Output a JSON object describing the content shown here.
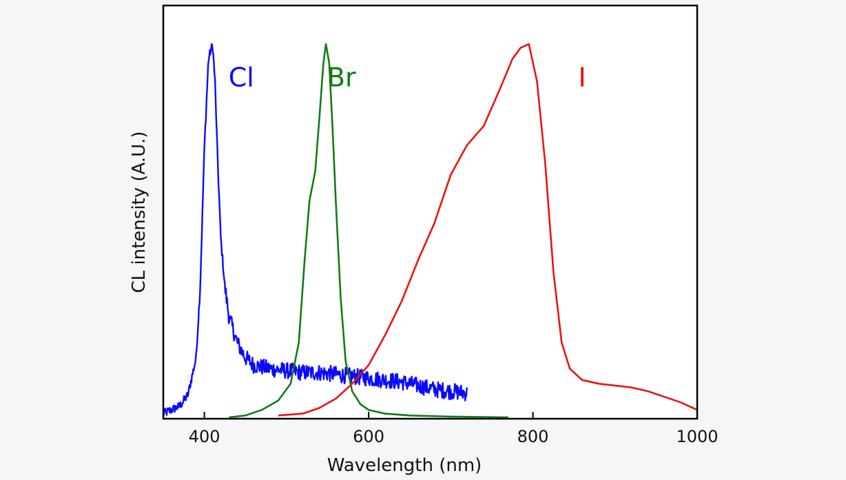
{
  "chart_data": {
    "type": "line",
    "title": "",
    "xlabel": "Wavelength (nm)",
    "ylabel": "CL intensity (A.U.)",
    "xlim": [
      350,
      1000
    ],
    "ylim": [
      0,
      1
    ],
    "xticks": [
      400,
      600,
      800,
      1000
    ],
    "xtick_labels": [
      "400",
      "600",
      "800",
      "1000"
    ],
    "yticks_shown": false,
    "grid": false,
    "legend": "none (inline labels near peaks)",
    "series": [
      {
        "name": "Cl",
        "color": "#0a0aff",
        "label_at": [
          445,
          0.92
        ],
        "noisy": true,
        "x": [
          350,
          360,
          370,
          380,
          390,
          395,
          400,
          405,
          410,
          413,
          416,
          420,
          425,
          430,
          440,
          450,
          460,
          480,
          500,
          520,
          540,
          560,
          580,
          600,
          620,
          640,
          660,
          680,
          700,
          720
        ],
        "y": [
          0.01,
          0.02,
          0.03,
          0.06,
          0.16,
          0.35,
          0.72,
          0.96,
          1.0,
          0.9,
          0.7,
          0.48,
          0.35,
          0.27,
          0.2,
          0.16,
          0.14,
          0.13,
          0.125,
          0.12,
          0.12,
          0.115,
          0.11,
          0.105,
          0.1,
          0.095,
          0.085,
          0.075,
          0.07,
          0.065
        ]
      },
      {
        "name": "Br",
        "color": "#137a13",
        "label_at": [
          567,
          0.92
        ],
        "noisy": false,
        "x": [
          430,
          450,
          470,
          490,
          505,
          515,
          522,
          528,
          535,
          540,
          545,
          548,
          552,
          556,
          560,
          566,
          572,
          580,
          590,
          600,
          620,
          650,
          700,
          770
        ],
        "y": [
          0.0,
          0.005,
          0.02,
          0.045,
          0.09,
          0.2,
          0.42,
          0.58,
          0.66,
          0.8,
          0.95,
          1.0,
          0.95,
          0.78,
          0.58,
          0.32,
          0.15,
          0.07,
          0.035,
          0.02,
          0.01,
          0.005,
          0.002,
          0.0
        ]
      },
      {
        "name": "I",
        "color": "#ee1111",
        "label_at": [
          860,
          0.92
        ],
        "noisy": false,
        "x": [
          490,
          520,
          540,
          560,
          580,
          600,
          620,
          640,
          660,
          680,
          700,
          720,
          740,
          760,
          775,
          785,
          795,
          805,
          815,
          825,
          835,
          845,
          860,
          880,
          900,
          920,
          940,
          960,
          980,
          1000
        ],
        "y": [
          0.005,
          0.01,
          0.025,
          0.05,
          0.09,
          0.14,
          0.22,
          0.31,
          0.42,
          0.52,
          0.65,
          0.73,
          0.78,
          0.88,
          0.96,
          0.99,
          1.0,
          0.9,
          0.68,
          0.39,
          0.2,
          0.13,
          0.1,
          0.09,
          0.085,
          0.08,
          0.07,
          0.055,
          0.04,
          0.02
        ]
      }
    ]
  }
}
